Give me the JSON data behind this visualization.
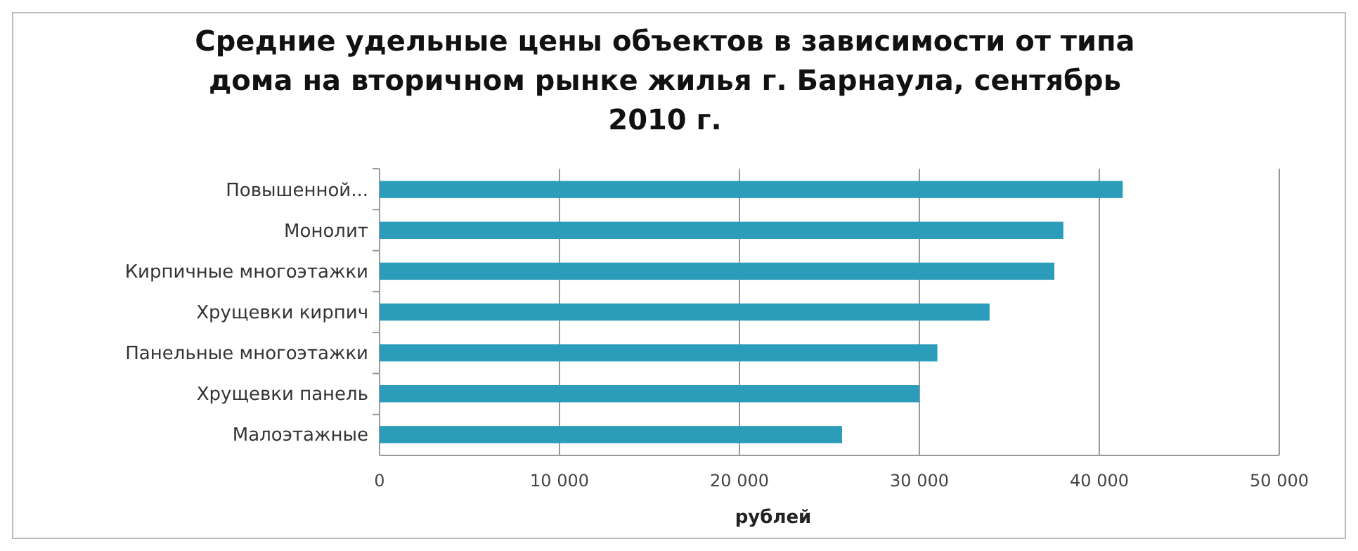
{
  "chart_data": {
    "type": "bar",
    "orientation": "horizontal",
    "title": "Средние удельные цены объектов в зависимости от типа дома на вторичном рынке жилья г. Барнаула, сентябрь 2010 г.",
    "xlabel": "рублей",
    "categories": [
      "Повышенной...",
      "Монолит",
      "Кирпичные многоэтажки",
      "Хрущевки кирпич",
      "Панельные многоэтажки",
      "Хрущевки панель",
      "Малоэтажные"
    ],
    "values": [
      41300,
      38000,
      37500,
      33900,
      31000,
      30000,
      25700
    ],
    "color": "#2b9cb9",
    "xlim": [
      0,
      50000
    ],
    "xticks": [
      {
        "value": 0,
        "label": "0"
      },
      {
        "value": 10000,
        "label": "10 000"
      },
      {
        "value": 20000,
        "label": "20 000"
      },
      {
        "value": 30000,
        "label": "30 000"
      },
      {
        "value": 40000,
        "label": "40 000"
      },
      {
        "value": 50000,
        "label": "50 000"
      }
    ],
    "grid": "x"
  }
}
